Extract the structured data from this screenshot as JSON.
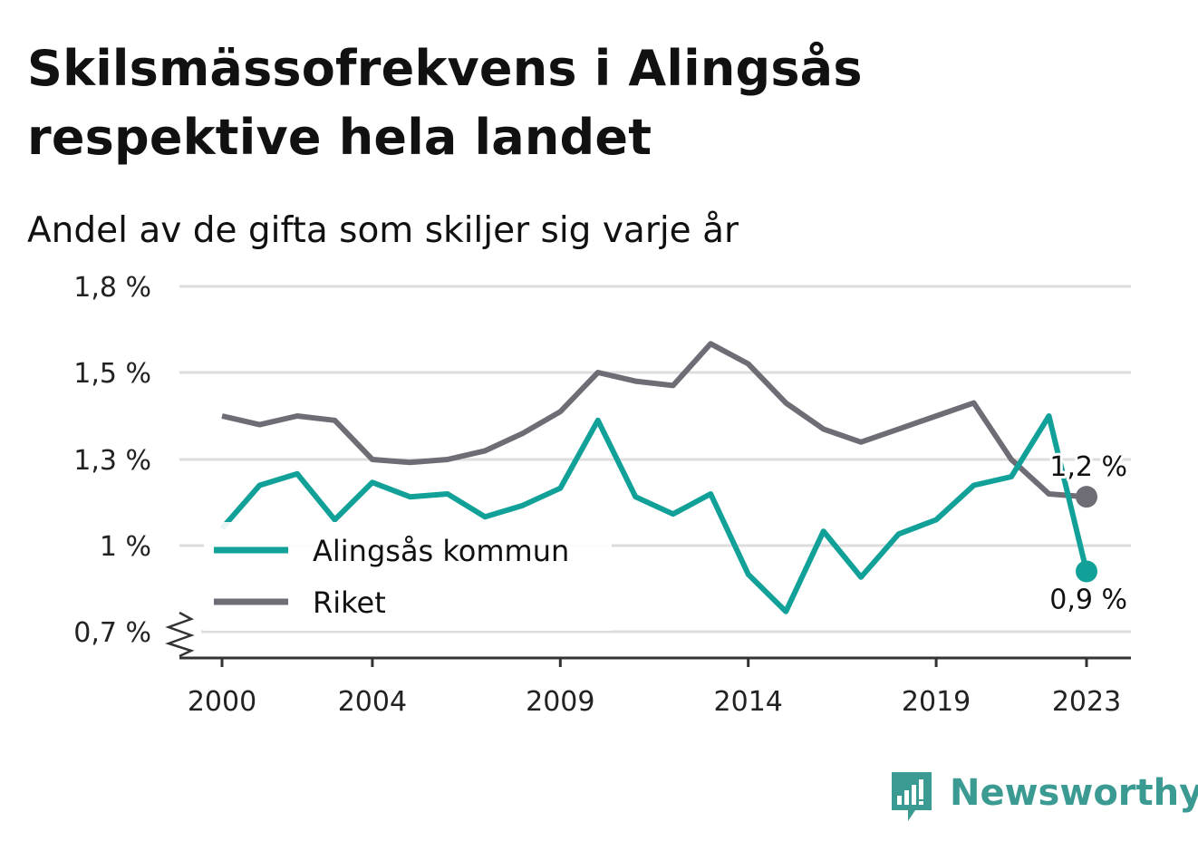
{
  "header": {
    "title": "Skilsmässofrekvens i Alingsås respektive hela landet",
    "subtitle": "Andel av de gifta som skiljer sig varje år"
  },
  "brand": {
    "name": "Newsworthy",
    "icon": "newsworthy-logo-icon",
    "color": "#3b9b93"
  },
  "colors": {
    "alingsas": "#11a199",
    "riket": "#6e6d75",
    "grid": "#dddddd",
    "axis": "#333333"
  },
  "chart_data": {
    "type": "line",
    "x": [
      2000,
      2001,
      2002,
      2003,
      2004,
      2005,
      2006,
      2007,
      2008,
      2009,
      2010,
      2011,
      2012,
      2013,
      2014,
      2015,
      2016,
      2017,
      2018,
      2019,
      2020,
      2021,
      2022,
      2023
    ],
    "x_tick_labels": [
      "2000",
      "2004",
      "2009",
      "2014",
      "2019",
      "2023"
    ],
    "y_tick_labels": [
      "1,8 %",
      "1,5 %",
      "1,3 %",
      "1 %",
      "0,7 %"
    ],
    "ylim": [
      0.7,
      1.8
    ],
    "y_axis_break": true,
    "legend_position": "bottom-left",
    "grid": "horizontal",
    "series": [
      {
        "name": "Alingsås kommun",
        "color": "#11a199",
        "values": [
          1.06,
          1.21,
          1.25,
          1.09,
          1.22,
          1.17,
          1.18,
          1.1,
          1.14,
          1.2,
          1.39,
          1.17,
          1.11,
          1.18,
          0.9,
          0.77,
          1.05,
          0.89,
          1.04,
          1.09,
          1.21,
          1.24,
          1.4,
          0.91
        ],
        "end_label": "0,9 %"
      },
      {
        "name": "Riket",
        "color": "#6e6d75",
        "values": [
          1.4,
          1.38,
          1.4,
          1.39,
          1.3,
          1.29,
          1.3,
          1.32,
          1.36,
          1.41,
          1.5,
          1.48,
          1.47,
          1.6,
          1.53,
          1.43,
          1.37,
          1.34,
          1.37,
          1.4,
          1.43,
          1.3,
          1.18,
          1.17
        ],
        "end_label": "1,2 %"
      }
    ]
  }
}
